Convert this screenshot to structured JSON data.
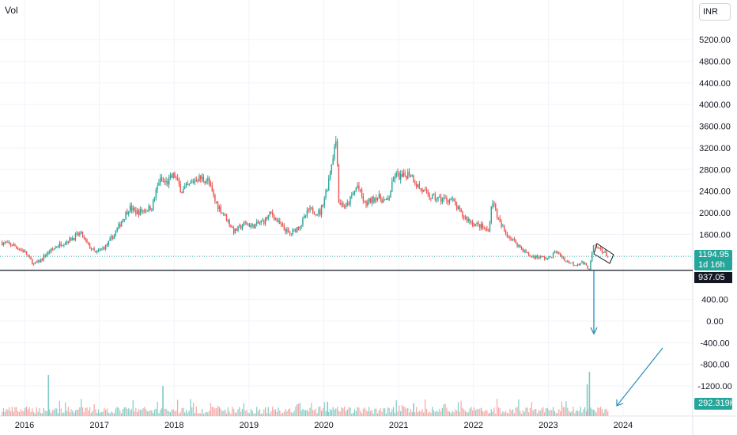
{
  "header": {
    "indicator_label": "Vol",
    "currency": "INR"
  },
  "price_tag": {
    "value": "1194.95",
    "countdown": "1d 16h"
  },
  "level_tag": {
    "value": "937.05"
  },
  "volume_tag": {
    "value": "292.319K"
  },
  "colors": {
    "up": "#26a69a",
    "down": "#ef5350",
    "up_vol": "#80cbc4",
    "down_vol": "#f7a5a3",
    "level_line": "#131722",
    "price_line": "#26a69a",
    "annotation": "#2a8db8"
  },
  "chart_data": {
    "type": "candlestick",
    "symbol_currency": "INR",
    "x_axis": {
      "ticks": [
        "2016",
        "2017",
        "2018",
        "2019",
        "2020",
        "2021",
        "2022",
        "2023",
        "2024"
      ],
      "range": [
        2015.7,
        2024.85
      ]
    },
    "y_axis": {
      "ticks": [
        5200,
        4800,
        4400,
        4000,
        3600,
        3200,
        2800,
        2400,
        2000,
        1600,
        400,
        0,
        -400,
        -800,
        -1200
      ],
      "tick_labels": [
        "5200.00",
        "4800.00",
        "4400.00",
        "4000.00",
        "3600.00",
        "3200.00",
        "2800.00",
        "2400.00",
        "2000.00",
        "1600.00",
        "400.00",
        "0.00",
        "-400.00",
        "-800.00",
        "-1200.00"
      ],
      "range": [
        -1650,
        5500
      ],
      "scale": "linear"
    },
    "last_price": 1194.95,
    "horizontal_level": 937.05,
    "close_path": [
      [
        2015.7,
        1450
      ],
      [
        2015.85,
        1400
      ],
      [
        2016.0,
        1280
      ],
      [
        2016.12,
        1050
      ],
      [
        2016.2,
        1100
      ],
      [
        2016.3,
        1250
      ],
      [
        2016.45,
        1400
      ],
      [
        2016.6,
        1500
      ],
      [
        2016.75,
        1620
      ],
      [
        2016.85,
        1400
      ],
      [
        2016.95,
        1250
      ],
      [
        2017.1,
        1400
      ],
      [
        2017.2,
        1600
      ],
      [
        2017.3,
        1850
      ],
      [
        2017.4,
        2100
      ],
      [
        2017.5,
        2000
      ],
      [
        2017.6,
        2050
      ],
      [
        2017.7,
        2100
      ],
      [
        2017.8,
        2600
      ],
      [
        2017.9,
        2550
      ],
      [
        2018.0,
        2700
      ],
      [
        2018.1,
        2400
      ],
      [
        2018.2,
        2500
      ],
      [
        2018.3,
        2650
      ],
      [
        2018.45,
        2600
      ],
      [
        2018.55,
        2200
      ],
      [
        2018.7,
        1900
      ],
      [
        2018.8,
        1650
      ],
      [
        2018.95,
        1800
      ],
      [
        2019.05,
        1750
      ],
      [
        2019.2,
        1850
      ],
      [
        2019.3,
        2000
      ],
      [
        2019.4,
        1800
      ],
      [
        2019.55,
        1600
      ],
      [
        2019.7,
        1800
      ],
      [
        2019.8,
        2050
      ],
      [
        2019.95,
        2000
      ],
      [
        2020.05,
        2500
      ],
      [
        2020.12,
        3050
      ],
      [
        2020.17,
        3400
      ],
      [
        2020.2,
        2200
      ],
      [
        2020.3,
        2100
      ],
      [
        2020.45,
        2500
      ],
      [
        2020.55,
        2150
      ],
      [
        2020.7,
        2300
      ],
      [
        2020.85,
        2200
      ],
      [
        2020.95,
        2700
      ],
      [
        2021.05,
        2650
      ],
      [
        2021.15,
        2750
      ],
      [
        2021.25,
        2500
      ],
      [
        2021.4,
        2300
      ],
      [
        2021.55,
        2250
      ],
      [
        2021.7,
        2250
      ],
      [
        2021.85,
        1950
      ],
      [
        2022.0,
        1800
      ],
      [
        2022.1,
        1750
      ],
      [
        2022.2,
        1650
      ],
      [
        2022.25,
        2250
      ],
      [
        2022.35,
        1800
      ],
      [
        2022.45,
        1600
      ],
      [
        2022.6,
        1400
      ],
      [
        2022.75,
        1200
      ],
      [
        2022.9,
        1180
      ],
      [
        2023.0,
        1150
      ],
      [
        2023.1,
        1280
      ],
      [
        2023.25,
        1100
      ],
      [
        2023.35,
        1050
      ],
      [
        2023.45,
        1080
      ],
      [
        2023.55,
        960
      ],
      [
        2023.6,
        1380
      ],
      [
        2023.7,
        1330
      ],
      [
        2023.8,
        1195
      ]
    ],
    "annotations": [
      "descending channel drawn on last candles",
      "vertical arrow pointing down from the current price",
      "diagonal arrow pointing toward the latest volume bars"
    ],
    "volume": {
      "label": "Vol",
      "last": "292.319K"
    }
  }
}
